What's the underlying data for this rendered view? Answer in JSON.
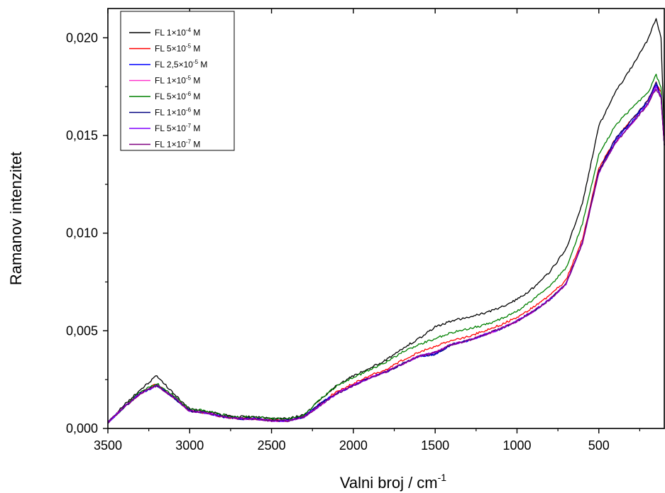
{
  "chart_data": {
    "type": "line",
    "xlabel": "Valni broj / cm",
    "xlabel_sup": "-1",
    "ylabel": "Ramanov intenzitet",
    "xlim": [
      3500,
      100
    ],
    "ylim": [
      0,
      0.0215
    ],
    "x_reversed": true,
    "grid": false,
    "legend_position": "top-left",
    "x_ticks": [
      {
        "value": 3500,
        "label": "3500"
      },
      {
        "value": 3000,
        "label": "3000"
      },
      {
        "value": 2500,
        "label": "2500"
      },
      {
        "value": 2000,
        "label": "2000"
      },
      {
        "value": 1500,
        "label": "1500"
      },
      {
        "value": 1000,
        "label": "1000"
      },
      {
        "value": 500,
        "label": "500"
      }
    ],
    "y_ticks": [
      {
        "value": 0.0,
        "label": "0,000"
      },
      {
        "value": 0.005,
        "label": "0,005"
      },
      {
        "value": 0.01,
        "label": "0,010"
      },
      {
        "value": 0.015,
        "label": "0,015"
      },
      {
        "value": 0.02,
        "label": "0,020"
      }
    ],
    "series": [
      {
        "name": "FL 1×10",
        "sup": "-4",
        "unit": "M",
        "color": "#000000",
        "x": [
          3500,
          3400,
          3300,
          3200,
          3100,
          3000,
          2900,
          2800,
          2700,
          2600,
          2500,
          2400,
          2300,
          2200,
          2100,
          2000,
          1900,
          1800,
          1700,
          1600,
          1500,
          1400,
          1300,
          1200,
          1100,
          1000,
          900,
          800,
          700,
          600,
          500,
          400,
          300,
          200,
          150,
          120,
          100
        ],
        "y": [
          0.0003,
          0.0012,
          0.002,
          0.0027,
          0.0018,
          0.001,
          0.0009,
          0.0007,
          0.0006,
          0.0006,
          0.0005,
          0.0005,
          0.0007,
          0.0015,
          0.0022,
          0.0027,
          0.0031,
          0.0035,
          0.0041,
          0.0046,
          0.0052,
          0.0055,
          0.0057,
          0.0059,
          0.0062,
          0.0066,
          0.0072,
          0.008,
          0.0092,
          0.0115,
          0.0155,
          0.0172,
          0.0185,
          0.0199,
          0.021,
          0.02,
          0.015
        ]
      },
      {
        "name": "FL 5×10",
        "sup": "-5",
        "unit": "M",
        "color": "#ff0000",
        "x": [
          3500,
          3400,
          3300,
          3200,
          3100,
          3000,
          2900,
          2800,
          2700,
          2600,
          2500,
          2400,
          2300,
          2200,
          2100,
          2000,
          1900,
          1800,
          1700,
          1600,
          1500,
          1400,
          1300,
          1200,
          1100,
          1000,
          900,
          800,
          700,
          600,
          500,
          400,
          300,
          200,
          150,
          120,
          100
        ],
        "y": [
          0.0003,
          0.0011,
          0.0018,
          0.0023,
          0.0016,
          0.0009,
          0.0008,
          0.0006,
          0.0005,
          0.0005,
          0.0004,
          0.0004,
          0.0006,
          0.0013,
          0.0019,
          0.0023,
          0.0027,
          0.003,
          0.0035,
          0.0039,
          0.0042,
          0.0045,
          0.0047,
          0.005,
          0.0053,
          0.0057,
          0.0062,
          0.0068,
          0.0076,
          0.0097,
          0.0133,
          0.0148,
          0.0158,
          0.0168,
          0.0177,
          0.0172,
          0.0145
        ]
      },
      {
        "name": "FL 2,5×10",
        "sup": "-5",
        "unit": "M",
        "color": "#0000ff",
        "x": [
          3500,
          3400,
          3300,
          3200,
          3100,
          3000,
          2900,
          2800,
          2700,
          2600,
          2500,
          2400,
          2300,
          2200,
          2100,
          2000,
          1900,
          1800,
          1700,
          1600,
          1500,
          1400,
          1300,
          1200,
          1100,
          1000,
          900,
          800,
          700,
          600,
          500,
          400,
          300,
          200,
          150,
          120,
          100
        ],
        "y": [
          0.0003,
          0.0011,
          0.0018,
          0.0022,
          0.0016,
          0.0009,
          0.0008,
          0.0006,
          0.0005,
          0.0005,
          0.0004,
          0.0004,
          0.0006,
          0.0013,
          0.0018,
          0.0022,
          0.0026,
          0.0029,
          0.0033,
          0.0037,
          0.0038,
          0.0043,
          0.0045,
          0.0048,
          0.0051,
          0.0055,
          0.006,
          0.0066,
          0.0074,
          0.0095,
          0.0132,
          0.0147,
          0.0157,
          0.0167,
          0.0176,
          0.017,
          0.0145
        ]
      },
      {
        "name": "FL 1×10",
        "sup": "-5",
        "unit": "M",
        "color": "#ff33cc",
        "x": [
          3500,
          3400,
          3300,
          3200,
          3100,
          3000,
          2900,
          2800,
          2700,
          2600,
          2500,
          2400,
          2300,
          2200,
          2100,
          2000,
          1900,
          1800,
          1700,
          1600,
          1500,
          1400,
          1300,
          1200,
          1100,
          1000,
          900,
          800,
          700,
          600,
          500,
          400,
          300,
          200,
          150,
          120,
          100
        ],
        "y": [
          0.0003,
          0.0011,
          0.0018,
          0.0022,
          0.0016,
          0.0009,
          0.0008,
          0.0006,
          0.0005,
          0.0005,
          0.0004,
          0.0004,
          0.0006,
          0.0012,
          0.0018,
          0.0022,
          0.0026,
          0.0029,
          0.0033,
          0.0037,
          0.0039,
          0.0043,
          0.0045,
          0.0048,
          0.0051,
          0.0055,
          0.006,
          0.0066,
          0.0074,
          0.0095,
          0.0131,
          0.0146,
          0.0156,
          0.0166,
          0.0175,
          0.017,
          0.0145
        ]
      },
      {
        "name": "FL 5×10",
        "sup": "-6",
        "unit": "M",
        "color": "#008000",
        "x": [
          3500,
          3400,
          3300,
          3200,
          3100,
          3000,
          2900,
          2800,
          2700,
          2600,
          2500,
          2400,
          2300,
          2200,
          2100,
          2000,
          1900,
          1800,
          1700,
          1600,
          1500,
          1400,
          1300,
          1200,
          1100,
          1000,
          900,
          800,
          700,
          600,
          500,
          400,
          300,
          200,
          150,
          120,
          100
        ],
        "y": [
          0.0003,
          0.0011,
          0.0019,
          0.0023,
          0.0017,
          0.001,
          0.0009,
          0.0007,
          0.0006,
          0.0006,
          0.0005,
          0.0005,
          0.0007,
          0.0015,
          0.0022,
          0.0026,
          0.003,
          0.0034,
          0.0039,
          0.0043,
          0.0046,
          0.0049,
          0.0051,
          0.0053,
          0.0056,
          0.006,
          0.0066,
          0.0073,
          0.0082,
          0.0105,
          0.014,
          0.0155,
          0.0164,
          0.0172,
          0.0181,
          0.0175,
          0.0145
        ]
      },
      {
        "name": "FL 1×10",
        "sup": "-6",
        "unit": "M",
        "color": "#000080",
        "x": [
          3500,
          3400,
          3300,
          3200,
          3100,
          3000,
          2900,
          2800,
          2700,
          2600,
          2500,
          2400,
          2300,
          2200,
          2100,
          2000,
          1900,
          1800,
          1700,
          1600,
          1500,
          1400,
          1300,
          1200,
          1100,
          1000,
          900,
          800,
          700,
          600,
          500,
          400,
          300,
          200,
          150,
          120,
          100
        ],
        "y": [
          0.0003,
          0.0011,
          0.0018,
          0.0022,
          0.0016,
          0.0009,
          0.0008,
          0.0006,
          0.0005,
          0.0005,
          0.0004,
          0.0004,
          0.0006,
          0.0013,
          0.0018,
          0.0022,
          0.0026,
          0.0029,
          0.0033,
          0.0037,
          0.0038,
          0.0043,
          0.0045,
          0.0048,
          0.0051,
          0.0055,
          0.006,
          0.0066,
          0.0074,
          0.0095,
          0.0132,
          0.0148,
          0.0158,
          0.0168,
          0.0177,
          0.017,
          0.0145
        ]
      },
      {
        "name": "FL 5×10",
        "sup": "-7",
        "unit": "M",
        "color": "#8000ff",
        "x": [
          3500,
          3400,
          3300,
          3200,
          3100,
          3000,
          2900,
          2800,
          2700,
          2600,
          2500,
          2400,
          2300,
          2200,
          2100,
          2000,
          1900,
          1800,
          1700,
          1600,
          1500,
          1400,
          1300,
          1200,
          1100,
          1000,
          900,
          800,
          700,
          600,
          500,
          400,
          300,
          200,
          150,
          120,
          100
        ],
        "y": [
          0.0003,
          0.0011,
          0.0018,
          0.0022,
          0.0016,
          0.0009,
          0.0008,
          0.0006,
          0.0005,
          0.0005,
          0.0004,
          0.0004,
          0.0006,
          0.0012,
          0.0018,
          0.0022,
          0.0026,
          0.0029,
          0.0033,
          0.0037,
          0.0039,
          0.0043,
          0.0045,
          0.0048,
          0.0051,
          0.0055,
          0.006,
          0.0066,
          0.0074,
          0.0095,
          0.0131,
          0.0146,
          0.0156,
          0.0166,
          0.0175,
          0.017,
          0.0145
        ]
      },
      {
        "name": "FL 1×10",
        "sup": "-7",
        "unit": "M",
        "color": "#800080",
        "x": [
          3500,
          3400,
          3300,
          3200,
          3100,
          3000,
          2900,
          2800,
          2700,
          2600,
          2500,
          2400,
          2300,
          2200,
          2100,
          2000,
          1900,
          1800,
          1700,
          1600,
          1500,
          1400,
          1300,
          1200,
          1100,
          1000,
          900,
          800,
          700,
          600,
          500,
          400,
          300,
          200,
          150,
          120,
          100
        ],
        "y": [
          0.0003,
          0.0011,
          0.0018,
          0.0022,
          0.0016,
          0.0009,
          0.0008,
          0.0006,
          0.0005,
          0.0005,
          0.0004,
          0.0004,
          0.0006,
          0.0012,
          0.0018,
          0.0022,
          0.0026,
          0.0029,
          0.0033,
          0.0037,
          0.0039,
          0.0043,
          0.0045,
          0.0048,
          0.0051,
          0.0055,
          0.006,
          0.0066,
          0.0074,
          0.0095,
          0.0131,
          0.0146,
          0.0156,
          0.0166,
          0.0174,
          0.0169,
          0.0145
        ]
      }
    ]
  }
}
